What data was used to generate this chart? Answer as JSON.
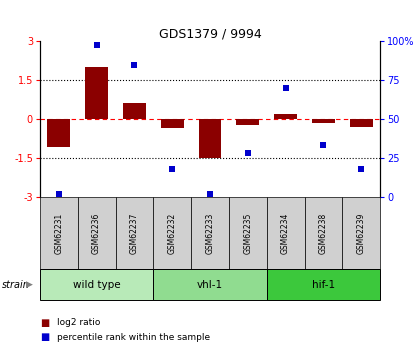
{
  "title": "GDS1379 / 9994",
  "samples": [
    "GSM62231",
    "GSM62236",
    "GSM62237",
    "GSM62232",
    "GSM62233",
    "GSM62235",
    "GSM62234",
    "GSM62238",
    "GSM62239"
  ],
  "log2_ratio": [
    -1.1,
    2.0,
    0.6,
    -0.35,
    -1.5,
    -0.25,
    0.2,
    -0.15,
    -0.3
  ],
  "percentile_rank": [
    2,
    98,
    85,
    18,
    2,
    28,
    70,
    33,
    18
  ],
  "groups": [
    {
      "label": "wild type",
      "start": 0,
      "end": 3,
      "color": "#b8eab8"
    },
    {
      "label": "vhl-1",
      "start": 3,
      "end": 6,
      "color": "#90dc90"
    },
    {
      "label": "hif-1",
      "start": 6,
      "end": 9,
      "color": "#3cc83c"
    }
  ],
  "ylim": [
    -3,
    3
  ],
  "yticks_left": [
    -3,
    -1.5,
    0,
    1.5,
    3
  ],
  "yticks_right_vals": [
    0,
    25,
    50,
    75,
    100
  ],
  "bar_color": "#8b0000",
  "dot_color": "#0000cc",
  "background_color": "#ffffff",
  "label_log2": "log2 ratio",
  "label_pct": "percentile rank within the sample",
  "strain_label": "strain",
  "header_bg": "#d0d0d0"
}
